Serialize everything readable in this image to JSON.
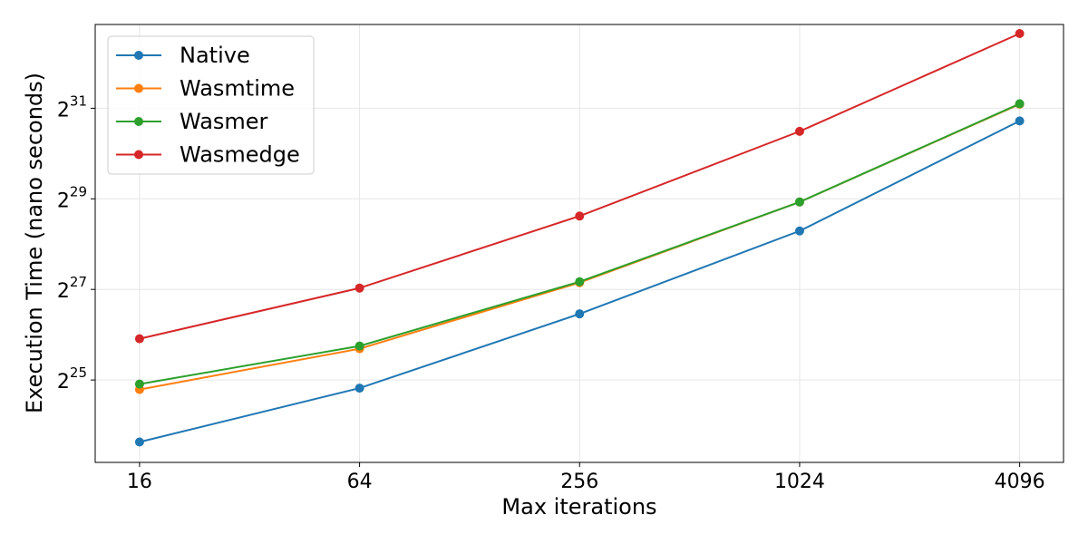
{
  "chart_data": {
    "type": "line",
    "title": "",
    "xlabel": "Max iterations",
    "ylabel": "Execution Time (nano seconds)",
    "x_scale": "log2",
    "y_scale": "log2",
    "x_ticks": [
      16,
      64,
      256,
      1024,
      4096
    ],
    "x_tick_labels": [
      "16",
      "64",
      "256",
      "1024",
      "4096"
    ],
    "y_ticks": [
      {
        "base": "2",
        "exp": "25",
        "log2": 25
      },
      {
        "base": "2",
        "exp": "27",
        "log2": 27
      },
      {
        "base": "2",
        "exp": "29",
        "log2": 29
      },
      {
        "base": "2",
        "exp": "31",
        "log2": 31
      }
    ],
    "xlim": [
      12.1,
      5400
    ],
    "ylim_log2": [
      23.18,
      32.85
    ],
    "grid": true,
    "legend_position": "top-left",
    "x": [
      16,
      64,
      256,
      1024,
      4096
    ],
    "series": [
      {
        "name": "Native",
        "color": "#1f77b4",
        "log2_values": [
          23.63,
          24.82,
          26.46,
          28.29,
          30.72
        ]
      },
      {
        "name": "Wasmtime",
        "color": "#ff7f0e",
        "log2_values": [
          24.79,
          25.69,
          27.15,
          28.93,
          31.09
        ]
      },
      {
        "name": "Wasmer",
        "color": "#2ca02c",
        "log2_values": [
          24.91,
          25.75,
          27.17,
          28.93,
          31.1
        ]
      },
      {
        "name": "Wasmedge",
        "color": "#d62728",
        "log2_values": [
          25.91,
          27.03,
          28.62,
          30.49,
          32.65
        ]
      }
    ]
  }
}
